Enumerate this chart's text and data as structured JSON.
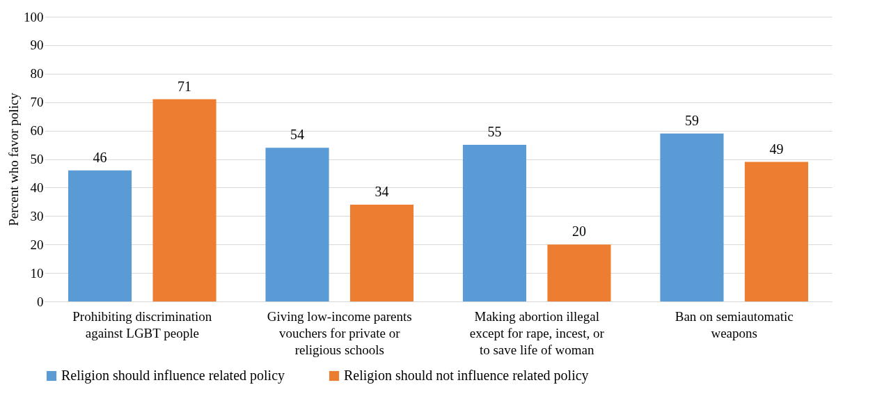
{
  "chart_data": {
    "type": "bar",
    "ylabel": "Percent who favor policy",
    "categories": [
      "Prohibiting discrimination against LGBT people",
      "Giving low-income parents vouchers for private or religious schools",
      "Making abortion illegal except for rape, incest, or to save life of woman",
      "Ban on semiautomatic weapons"
    ],
    "series": [
      {
        "name": "Religion should influence related policy",
        "color": "#5b9bd5",
        "values": [
          46,
          54,
          55,
          59
        ]
      },
      {
        "name": "Religion should not influence related policy",
        "color": "#ed7d31",
        "values": [
          71,
          34,
          20,
          49
        ]
      }
    ],
    "ylim": [
      0,
      100
    ],
    "yticks": [
      0,
      10,
      20,
      30,
      40,
      50,
      60,
      70,
      80,
      90,
      100
    ],
    "grid": "y",
    "legend": "bottom",
    "data_labels": true
  }
}
